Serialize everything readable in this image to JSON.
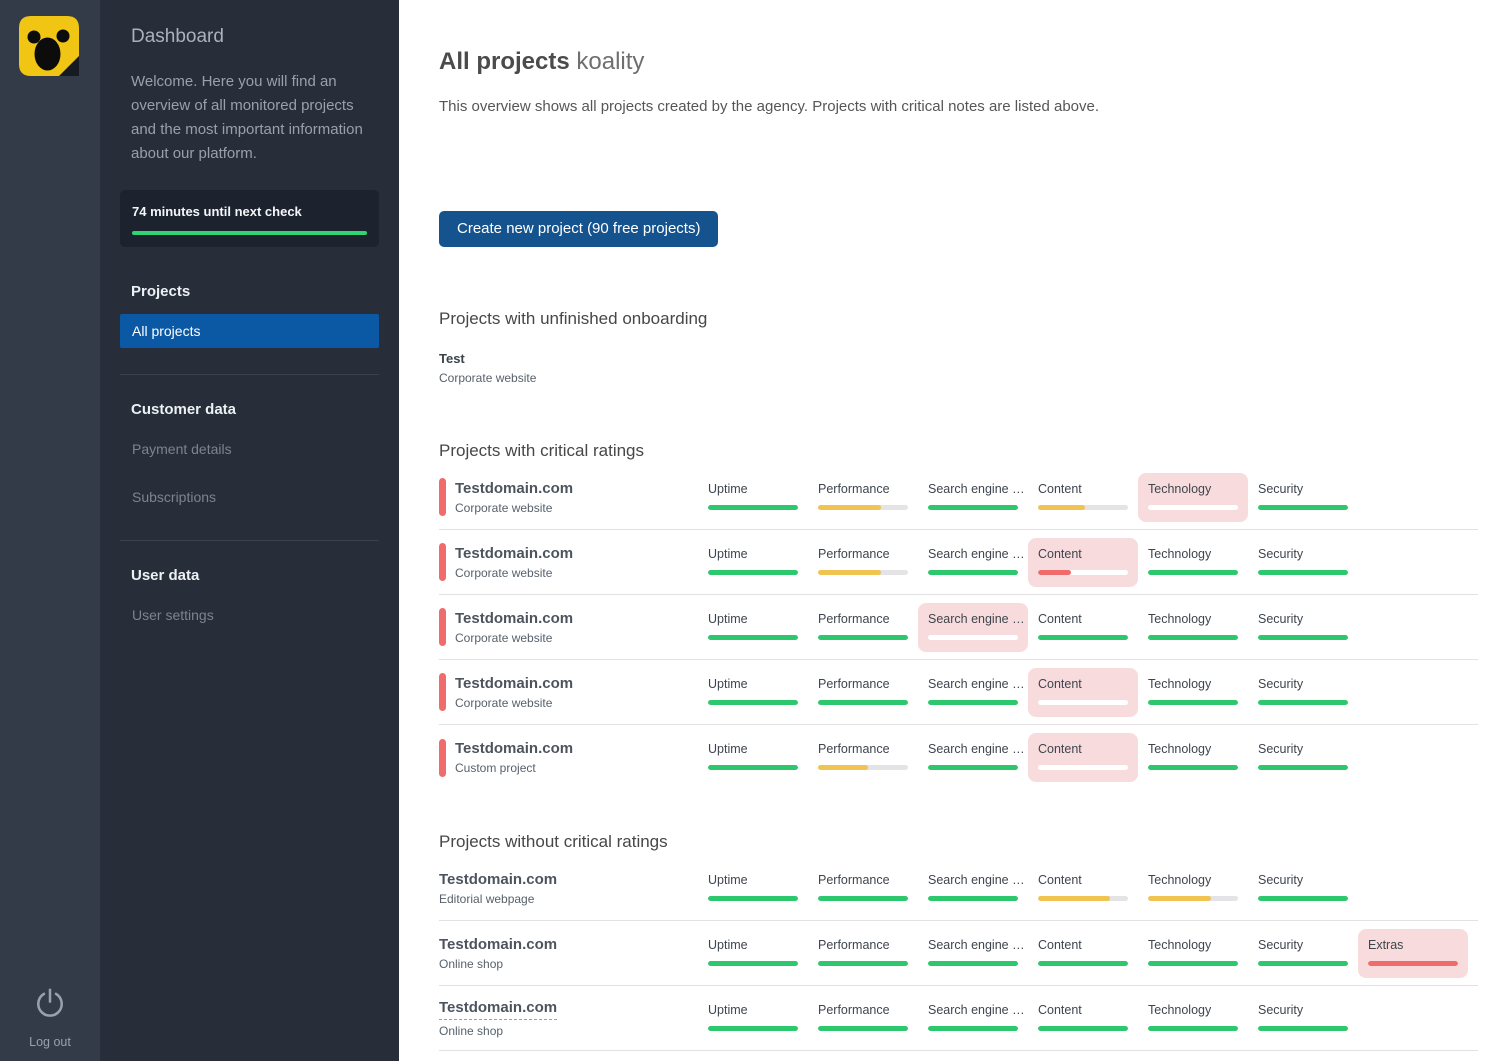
{
  "colors": {
    "rail_bg": "#333a48",
    "sidebar_bg": "#272e3a",
    "active_item_blue": "#0b58a4",
    "button_blue": "#15538f",
    "green": "#2dc86e",
    "progress_green": "#31d472",
    "yellow": "#f1c351",
    "red": "#ef6b6c",
    "pink_highlight": "#f8dcdd",
    "track_gray": "#e4e4e6",
    "white_track": "#ffffff",
    "logo_yellow": "#f0c514"
  },
  "rail": {
    "logo": "koality-logo",
    "logout_label": "Log out"
  },
  "sidebar": {
    "title": "Dashboard",
    "welcome": "Welcome. Here you will find an overview of all monitored projects and the most important information about our platform.",
    "next_check_label": "74 minutes until next check",
    "next_check_progress_pct": 100,
    "sections": [
      {
        "heading": "Projects",
        "items": [
          {
            "label": "All projects",
            "active": true
          }
        ]
      },
      {
        "heading": "Customer data",
        "items": [
          {
            "label": "Payment details",
            "active": false
          },
          {
            "label": "Subscriptions",
            "active": false
          }
        ]
      },
      {
        "heading": "User data",
        "items": [
          {
            "label": "User settings",
            "active": false
          }
        ]
      }
    ]
  },
  "main": {
    "title_bold": "All projects",
    "title_suffix": "koality",
    "description": "This overview shows all projects created by the agency. Projects with critical notes are listed above.",
    "create_button_label": "Create new project (90 free projects)",
    "onboarding": {
      "heading": "Projects with unfinished onboarding",
      "items": [
        {
          "name": "Test",
          "type": "Corporate website"
        }
      ]
    },
    "critical": {
      "heading": "Projects with critical ratings",
      "rows": [
        {
          "name": "Testdomain.com",
          "type": "Corporate website",
          "indicator": true,
          "dashed": false,
          "metrics": [
            {
              "label": "Uptime",
              "pct": 100,
              "color": "green",
              "highlight": false
            },
            {
              "label": "Performance",
              "pct": 70,
              "color": "yellow",
              "highlight": false
            },
            {
              "label": "Search engine …",
              "pct": 100,
              "color": "green",
              "highlight": false
            },
            {
              "label": "Content",
              "pct": 52,
              "color": "yellow",
              "highlight": false
            },
            {
              "label": "Technology",
              "pct": 0,
              "color": "none",
              "highlight": true
            },
            {
              "label": "Security",
              "pct": 100,
              "color": "green",
              "highlight": false
            }
          ]
        },
        {
          "name": "Testdomain.com",
          "type": "Corporate website",
          "indicator": true,
          "dashed": false,
          "metrics": [
            {
              "label": "Uptime",
              "pct": 100,
              "color": "green",
              "highlight": false
            },
            {
              "label": "Performance",
              "pct": 70,
              "color": "yellow",
              "highlight": false
            },
            {
              "label": "Search engine …",
              "pct": 100,
              "color": "green",
              "highlight": false
            },
            {
              "label": "Content",
              "pct": 37,
              "color": "red",
              "highlight": true
            },
            {
              "label": "Technology",
              "pct": 100,
              "color": "green",
              "highlight": false
            },
            {
              "label": "Security",
              "pct": 100,
              "color": "green",
              "highlight": false
            }
          ]
        },
        {
          "name": "Testdomain.com",
          "type": "Corporate website",
          "indicator": true,
          "dashed": false,
          "metrics": [
            {
              "label": "Uptime",
              "pct": 100,
              "color": "green",
              "highlight": false
            },
            {
              "label": "Performance",
              "pct": 100,
              "color": "green",
              "highlight": false
            },
            {
              "label": "Search engine …",
              "pct": 0,
              "color": "none",
              "highlight": true
            },
            {
              "label": "Content",
              "pct": 100,
              "color": "green",
              "highlight": false
            },
            {
              "label": "Technology",
              "pct": 100,
              "color": "green",
              "highlight": false
            },
            {
              "label": "Security",
              "pct": 100,
              "color": "green",
              "highlight": false
            }
          ]
        },
        {
          "name": "Testdomain.com",
          "type": "Corporate website",
          "indicator": true,
          "dashed": false,
          "metrics": [
            {
              "label": "Uptime",
              "pct": 100,
              "color": "green",
              "highlight": false
            },
            {
              "label": "Performance",
              "pct": 100,
              "color": "green",
              "highlight": false
            },
            {
              "label": "Search engine …",
              "pct": 100,
              "color": "green",
              "highlight": false
            },
            {
              "label": "Content",
              "pct": 0,
              "color": "none",
              "highlight": true
            },
            {
              "label": "Technology",
              "pct": 100,
              "color": "green",
              "highlight": false
            },
            {
              "label": "Security",
              "pct": 100,
              "color": "green",
              "highlight": false
            }
          ]
        },
        {
          "name": "Testdomain.com",
          "type": "Custom project",
          "indicator": true,
          "dashed": false,
          "metrics": [
            {
              "label": "Uptime",
              "pct": 100,
              "color": "green",
              "highlight": false
            },
            {
              "label": "Performance",
              "pct": 55,
              "color": "yellow",
              "highlight": false
            },
            {
              "label": "Search engine …",
              "pct": 100,
              "color": "green",
              "highlight": false
            },
            {
              "label": "Content",
              "pct": 0,
              "color": "none",
              "highlight": true
            },
            {
              "label": "Technology",
              "pct": 100,
              "color": "green",
              "highlight": false
            },
            {
              "label": "Security",
              "pct": 100,
              "color": "green",
              "highlight": false
            }
          ]
        }
      ]
    },
    "noncritical": {
      "heading": "Projects without critical ratings",
      "rows": [
        {
          "name": "Testdomain.com",
          "type": "Editorial webpage",
          "indicator": false,
          "dashed": false,
          "metrics": [
            {
              "label": "Uptime",
              "pct": 100,
              "color": "green",
              "highlight": false
            },
            {
              "label": "Performance",
              "pct": 100,
              "color": "green",
              "highlight": false
            },
            {
              "label": "Search engine …",
              "pct": 100,
              "color": "green",
              "highlight": false
            },
            {
              "label": "Content",
              "pct": 80,
              "color": "yellow",
              "highlight": false
            },
            {
              "label": "Technology",
              "pct": 70,
              "color": "yellow",
              "highlight": false
            },
            {
              "label": "Security",
              "pct": 100,
              "color": "green",
              "highlight": false
            }
          ]
        },
        {
          "name": "Testdomain.com",
          "type": "Online shop",
          "indicator": false,
          "dashed": false,
          "metrics": [
            {
              "label": "Uptime",
              "pct": 100,
              "color": "green",
              "highlight": false
            },
            {
              "label": "Performance",
              "pct": 100,
              "color": "green",
              "highlight": false
            },
            {
              "label": "Search engine …",
              "pct": 100,
              "color": "green",
              "highlight": false
            },
            {
              "label": "Content",
              "pct": 100,
              "color": "green",
              "highlight": false
            },
            {
              "label": "Technology",
              "pct": 100,
              "color": "green",
              "highlight": false
            },
            {
              "label": "Security",
              "pct": 100,
              "color": "green",
              "highlight": false
            },
            {
              "label": "Extras",
              "pct": 100,
              "color": "red",
              "highlight": true
            }
          ]
        },
        {
          "name": "Testdomain.com",
          "type": "Online shop",
          "indicator": false,
          "dashed": true,
          "metrics": [
            {
              "label": "Uptime",
              "pct": 100,
              "color": "green",
              "highlight": false
            },
            {
              "label": "Performance",
              "pct": 100,
              "color": "green",
              "highlight": false
            },
            {
              "label": "Search engine …",
              "pct": 100,
              "color": "green",
              "highlight": false
            },
            {
              "label": "Content",
              "pct": 100,
              "color": "green",
              "highlight": false
            },
            {
              "label": "Technology",
              "pct": 100,
              "color": "green",
              "highlight": false
            },
            {
              "label": "Security",
              "pct": 100,
              "color": "green",
              "highlight": false
            }
          ]
        }
      ]
    }
  }
}
